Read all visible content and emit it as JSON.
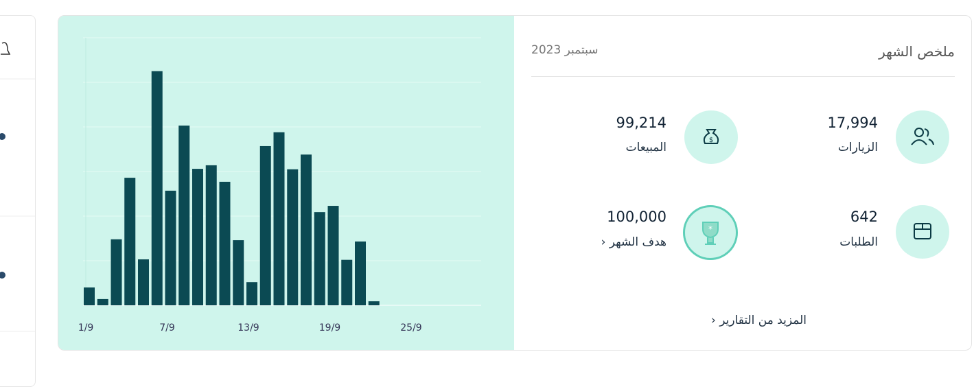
{
  "header": {
    "title": "ملخص الشهر",
    "period": "سبتمبر 2023"
  },
  "stats": [
    {
      "value": "17,994",
      "label": "الزيارات"
    },
    {
      "value": "99,214",
      "label": "المبيعات"
    },
    {
      "value": "642",
      "label": "الطلبات"
    },
    {
      "value": "100,000",
      "label": "هدف الشهر"
    }
  ],
  "link": "المزيد من التقارير",
  "chart_data": {
    "type": "bar",
    "categories": [
      "1/9",
      null,
      null,
      null,
      null,
      null,
      "7/9",
      null,
      null,
      null,
      null,
      null,
      "13/9",
      null,
      null,
      null,
      null,
      null,
      "19/9",
      null,
      null,
      null,
      null,
      null,
      "25/9",
      null,
      null,
      null,
      null,
      null
    ],
    "values": [
      0.4,
      0.14,
      1.48,
      2.86,
      1.03,
      5.25,
      2.57,
      4.03,
      3.06,
      3.14,
      2.77,
      1.46,
      0.52,
      3.57,
      3.88,
      3.05,
      3.38,
      2.09,
      2.23,
      1.02,
      1.43,
      0.09,
      0,
      0,
      0,
      0,
      0,
      0,
      0,
      0
    ],
    "color": "#0b4a53",
    "ylim": [
      0,
      6
    ],
    "ygrid": [
      0,
      1,
      2,
      3,
      4,
      5,
      6
    ],
    "grid": true
  }
}
